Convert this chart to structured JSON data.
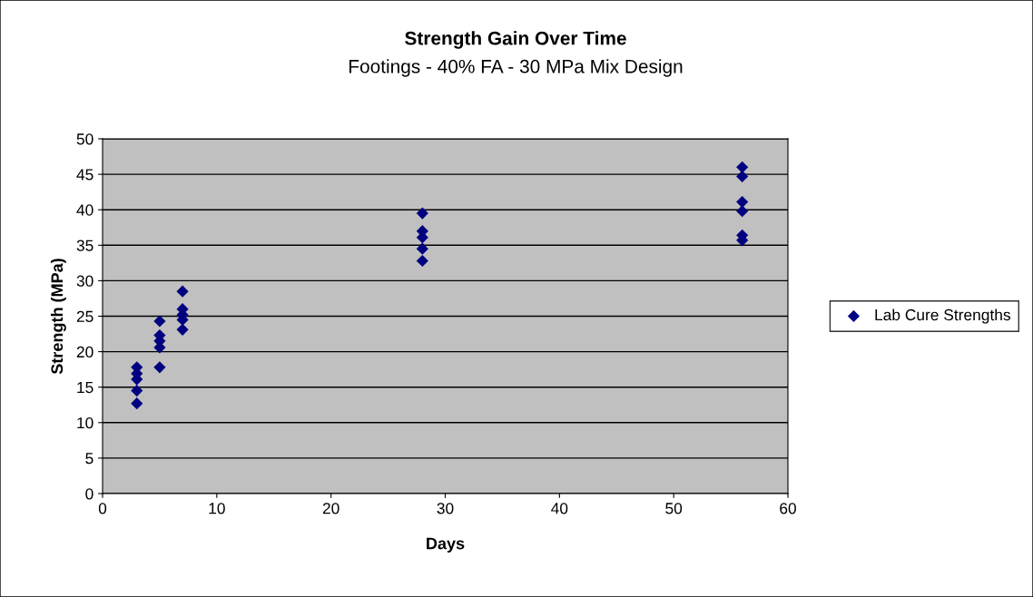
{
  "chart_data": {
    "type": "scatter",
    "title": "Strength Gain Over Time",
    "subtitle": "Footings - 40% FA - 30 MPa Mix Design",
    "xlabel": "Days",
    "ylabel": "Strength (MPa)",
    "series": [
      {
        "name": "Lab Cure Strengths",
        "color": "#000080",
        "x": [
          3,
          3,
          3,
          3,
          3,
          5,
          5,
          5,
          5,
          5,
          7,
          7,
          7,
          7,
          7,
          28,
          28,
          28,
          28,
          28,
          56,
          56,
          56,
          56,
          56,
          56
        ],
        "values": [
          12.7,
          14.5,
          16.1,
          16.9,
          17.8,
          17.8,
          20.6,
          21.5,
          22.3,
          24.3,
          23.1,
          24.5,
          25.2,
          26.0,
          28.5,
          39.5,
          37.0,
          36.1,
          34.5,
          32.8,
          46.0,
          44.7,
          41.1,
          39.8,
          36.4,
          35.7
        ]
      }
    ],
    "xlim": [
      0,
      60
    ],
    "xticks": [
      0,
      10,
      20,
      30,
      40,
      50,
      60
    ],
    "ylim": [
      0,
      50
    ],
    "yticks": [
      0,
      5,
      10,
      15,
      20,
      25,
      30,
      35,
      40,
      45,
      50
    ],
    "grid": "y",
    "legend": "right",
    "marker": "diamond"
  }
}
